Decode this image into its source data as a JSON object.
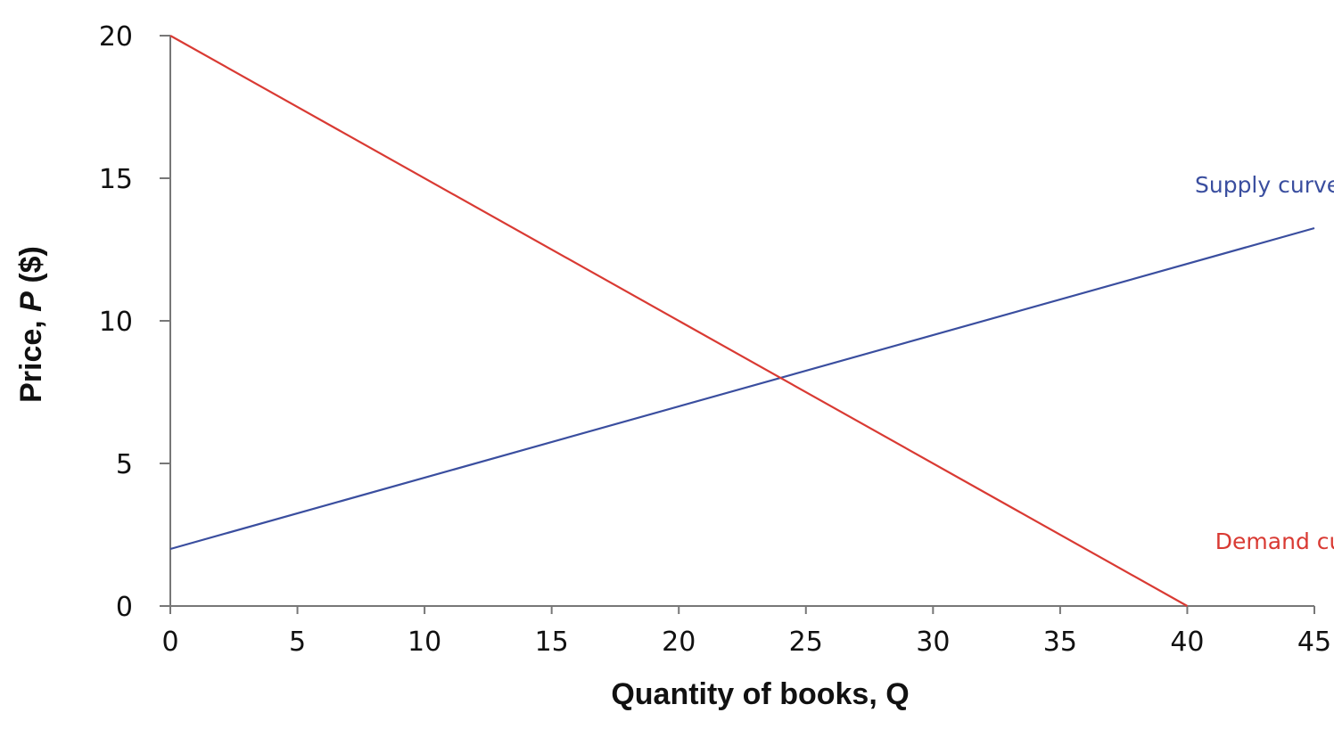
{
  "chart_data": {
    "type": "line",
    "xlabel": "Quantity of books, Q",
    "ylabel_parts": [
      "Price, ",
      "P",
      " ($)"
    ],
    "xlim": [
      0,
      45
    ],
    "ylim": [
      0,
      20
    ],
    "x_ticks": [
      0,
      5,
      10,
      15,
      20,
      25,
      30,
      35,
      40,
      45
    ],
    "y_ticks": [
      0,
      5,
      10,
      15,
      20
    ],
    "grid": false,
    "series": [
      {
        "name": "Supply curve",
        "color": "#3a4e9f",
        "x": [
          0,
          45
        ],
        "y": [
          2,
          13.25
        ],
        "label_at": [
          40.3,
          14.5
        ]
      },
      {
        "name": "Demand curve",
        "color": "#d93a33",
        "x": [
          0,
          40
        ],
        "y": [
          20,
          0
        ],
        "label_at": [
          41.1,
          2.0
        ]
      }
    ]
  }
}
